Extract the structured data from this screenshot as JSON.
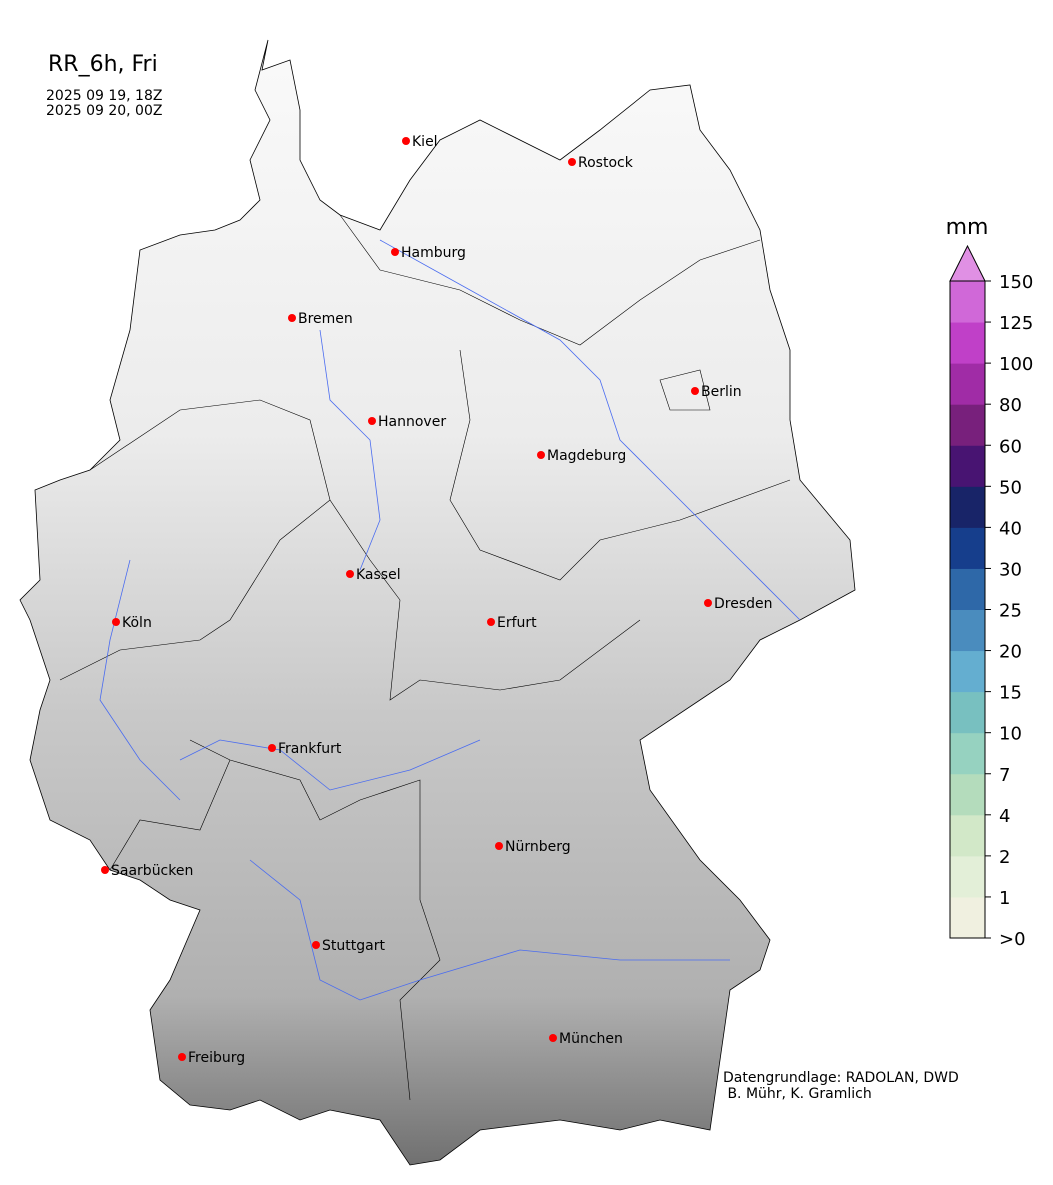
{
  "title": "RR_6h, Fri",
  "period_start": "2025 09 19, 18Z",
  "period_end": "2025 09 20, 00Z",
  "credit_line1": "Datengrundlage: RADOLAN, DWD",
  "credit_line2": " B. Mühr, K. Gramlich",
  "colorbar": {
    "unit": "mm",
    "ticks": [
      ">0",
      "1",
      "2",
      "4",
      "7",
      "10",
      "15",
      "20",
      "25",
      "30",
      "40",
      "50",
      "60",
      "80",
      "100",
      "125",
      "150"
    ],
    "colors": [
      "#f0f0e0",
      "#e3efd8",
      "#d2e8c8",
      "#b4dcbc",
      "#96d2c0",
      "#78c0c0",
      "#64aed0",
      "#4a8cbe",
      "#2e68a8",
      "#163e8c",
      "#182468",
      "#481472",
      "#78207c",
      "#a02ca6",
      "#c040c8",
      "#d068d8"
    ],
    "extend_color": "#e090e4"
  },
  "cities": [
    "Kiel",
    "Rostock",
    "Hamburg",
    "Bremen",
    "Berlin",
    "Hannover",
    "Magdeburg",
    "Kassel",
    "Dresden",
    "Köln",
    "Erfurt",
    "Frankfurt",
    "Nürnberg",
    "Saarbücken",
    "Stuttgart",
    "München",
    "Freiburg"
  ],
  "colors": {
    "city_marker": "#ff0000",
    "rivers": "#4a6cf0",
    "borders": "#000000"
  }
}
